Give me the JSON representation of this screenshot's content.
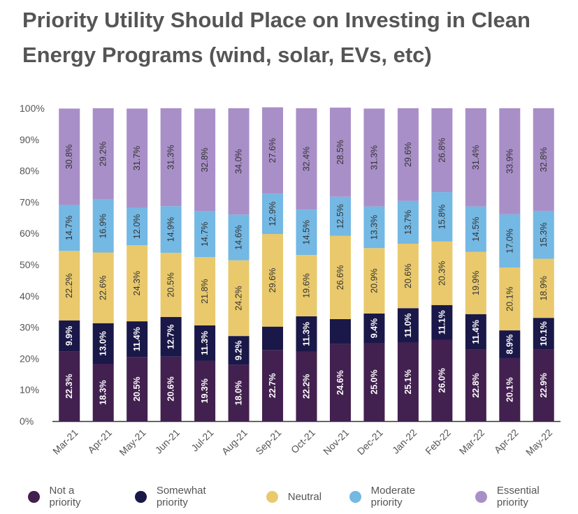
{
  "title": "Priority Utility Should Place on Investing in Clean Energy Programs (wind, solar, EVs, etc)",
  "chart_data": {
    "type": "bar",
    "stacked": true,
    "title": "Priority Utility Should Place on Investing in Clean Energy Programs (wind, solar, EVs, etc)",
    "categories": [
      "Mar-21",
      "Apr-21",
      "May-21",
      "Jun-21",
      "Jul-21",
      "Aug-21",
      "Sep-21",
      "Oct-21",
      "Nov-21",
      "Dec-21",
      "Jan-22",
      "Feb-22",
      "Mar-22",
      "Apr-22",
      "May-22"
    ],
    "ylim": [
      0,
      100
    ],
    "yticks": [
      "0%",
      "10%",
      "20%",
      "30%",
      "40%",
      "50%",
      "60%",
      "70%",
      "80%",
      "90%",
      "100%"
    ],
    "grid": false,
    "legend_position": "bottom",
    "series": [
      {
        "name": "Not a priority",
        "color": "#42204f",
        "values": [
          22.3,
          18.3,
          20.5,
          20.6,
          19.3,
          18.0,
          22.7,
          22.2,
          24.6,
          25.0,
          25.1,
          26.0,
          22.8,
          20.1,
          22.9
        ],
        "labels": [
          "22.3%",
          "18.3%",
          "20.5%",
          "20.6%",
          "19.3%",
          "18.0%",
          "22.7%",
          "22.2%",
          "24.6%",
          "25.0%",
          "25.1%",
          "26.0%",
          "22.8%",
          "20.1%",
          "22.9%"
        ]
      },
      {
        "name": "Somewhat priority",
        "color": "#1a1848",
        "values": [
          9.9,
          13.0,
          11.4,
          12.7,
          11.3,
          9.2,
          7.5,
          11.3,
          8.0,
          9.4,
          11.0,
          11.1,
          11.4,
          8.9,
          10.1
        ],
        "labels": [
          "9.9%",
          "13.0%",
          "11.4%",
          "12.7%",
          "11.3%",
          "9.2%",
          "",
          "11.3%",
          "",
          "9.4%",
          "11.0%",
          "11.1%",
          "11.4%",
          "8.9%",
          "10.1%"
        ]
      },
      {
        "name": "Neutral",
        "color": "#e9c96c",
        "values": [
          22.2,
          22.6,
          24.3,
          20.5,
          21.8,
          24.2,
          29.6,
          19.6,
          26.6,
          20.9,
          20.6,
          20.3,
          19.9,
          20.1,
          18.9
        ],
        "labels": [
          "22.2%",
          "22.6%",
          "24.3%",
          "20.5%",
          "21.8%",
          "24.2%",
          "29.6%",
          "19.6%",
          "26.6%",
          "20.9%",
          "20.6%",
          "20.3%",
          "19.9%",
          "20.1%",
          "18.9%"
        ]
      },
      {
        "name": "Moderate priority",
        "color": "#74b8e4",
        "values": [
          14.7,
          16.9,
          12.0,
          14.9,
          14.7,
          14.6,
          12.9,
          14.5,
          12.5,
          13.3,
          13.7,
          15.8,
          14.5,
          17.0,
          15.3
        ],
        "labels": [
          "14.7%",
          "16.9%",
          "12.0%",
          "14.9%",
          "14.7%",
          "14.6%",
          "12.9%",
          "14.5%",
          "12.5%",
          "13.3%",
          "13.7%",
          "15.8%",
          "14.5%",
          "17.0%",
          "15.3%"
        ]
      },
      {
        "name": "Essential priority",
        "color": "#a98fc8",
        "values": [
          30.8,
          29.2,
          31.7,
          31.3,
          32.8,
          34.0,
          27.6,
          32.4,
          28.5,
          31.3,
          29.6,
          26.8,
          31.4,
          33.9,
          32.8
        ],
        "labels": [
          "30.8%",
          "29.2%",
          "31.7%",
          "31.3%",
          "32.8%",
          "34.0%",
          "27.6%",
          "32.4%",
          "28.5%",
          "31.3%",
          "29.6%",
          "26.8%",
          "31.4%",
          "33.9%",
          "32.8%"
        ]
      }
    ]
  }
}
